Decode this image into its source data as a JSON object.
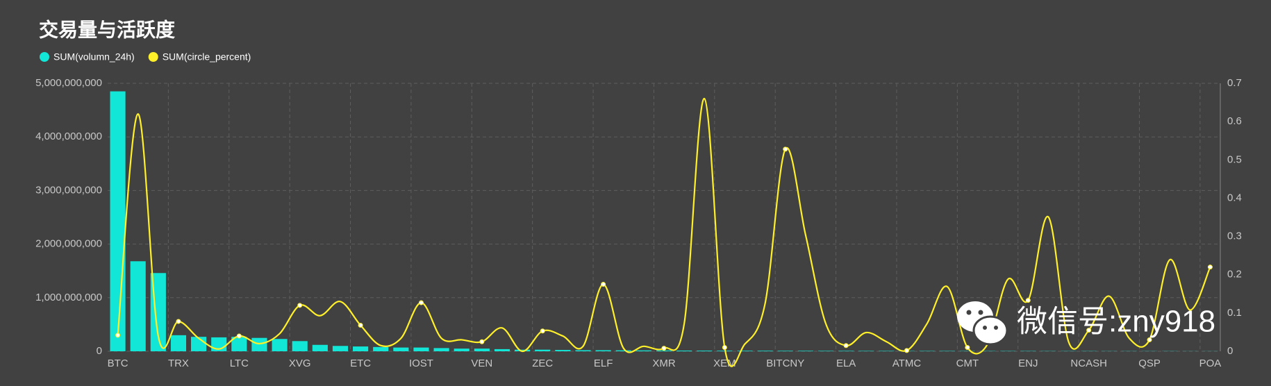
{
  "chart_data": {
    "type": "bar-line",
    "title": "交易量与活跃度",
    "watermark": "微信号:zny918",
    "categories": [
      "BTC",
      null,
      null,
      "TRX",
      null,
      null,
      "LTC",
      null,
      null,
      "XVG",
      null,
      null,
      "ETC",
      null,
      null,
      "IOST",
      null,
      null,
      "VEN",
      null,
      null,
      "ZEC",
      null,
      null,
      "ELF",
      null,
      null,
      "XMR",
      null,
      null,
      "XEM",
      null,
      null,
      "BITCNY",
      null,
      null,
      "ELA",
      null,
      null,
      "ATMC",
      null,
      null,
      "CMT",
      null,
      null,
      "ENJ",
      null,
      null,
      "NCASH",
      null,
      null,
      "QSP",
      null,
      null,
      "POA"
    ],
    "series": [
      {
        "name": "SUM(volumn_24h)",
        "color": "#12e6d6",
        "type": "bar",
        "values": [
          4850000000,
          1680000000,
          1460000000,
          300000000,
          270000000,
          260000000,
          270000000,
          250000000,
          230000000,
          190000000,
          120000000,
          100000000,
          90000000,
          80000000,
          70000000,
          70000000,
          60000000,
          50000000,
          50000000,
          40000000,
          30000000,
          30000000,
          25000000,
          20000000,
          20000000,
          18000000,
          16000000,
          15000000,
          13000000,
          12000000,
          11000000,
          10000000,
          10000000,
          9000000,
          9000000,
          8000000,
          8000000,
          7000000,
          7000000,
          6000000,
          6000000,
          6000000,
          5000000,
          5000000,
          5000000,
          5000000,
          4000000,
          4000000,
          4000000,
          3000000,
          3000000,
          3000000,
          3000000,
          2000000,
          2000000
        ]
      },
      {
        "name": "SUM(circle_percent)",
        "color": "#fff02a",
        "type": "line",
        "axis": "y2",
        "values": [
          0.042,
          0.62,
          0.04,
          0.078,
          0.034,
          0.006,
          0.04,
          0.02,
          0.046,
          0.12,
          0.093,
          0.13,
          0.068,
          0.015,
          0.034,
          0.127,
          0.034,
          0.03,
          0.025,
          0.061,
          0,
          0.053,
          0.04,
          0.013,
          0.175,
          0.008,
          0.013,
          0.008,
          0.072,
          0.66,
          0.01,
          0.019,
          0.125,
          0.528,
          0.304,
          0.072,
          0.015,
          0.049,
          0.025,
          0.002,
          0.072,
          0.169,
          0.01,
          0.019,
          0.188,
          0.133,
          0.351,
          0.025,
          0.055,
          0.144,
          0.034,
          0.03,
          0.239,
          0.108,
          0.22
        ]
      }
    ],
    "ylim": [
      0,
      5000000000
    ],
    "yticks": [
      0,
      {
        "value": 1000000000,
        "label": "1,000,000,000"
      },
      {
        "value": 2000000000,
        "label": "2,000,000,000"
      },
      {
        "value": 3000000000,
        "label": "3,000,000,000"
      },
      {
        "value": 4000000000,
        "label": "4,000,000,000"
      },
      {
        "value": 5000000000,
        "label": "5,000,000,000"
      }
    ],
    "y2lim": [
      0,
      0.7
    ],
    "y2ticks": [
      0,
      0.1,
      0.2,
      0.3,
      0.4,
      0.5,
      0.6,
      0.7
    ],
    "grid": true
  }
}
